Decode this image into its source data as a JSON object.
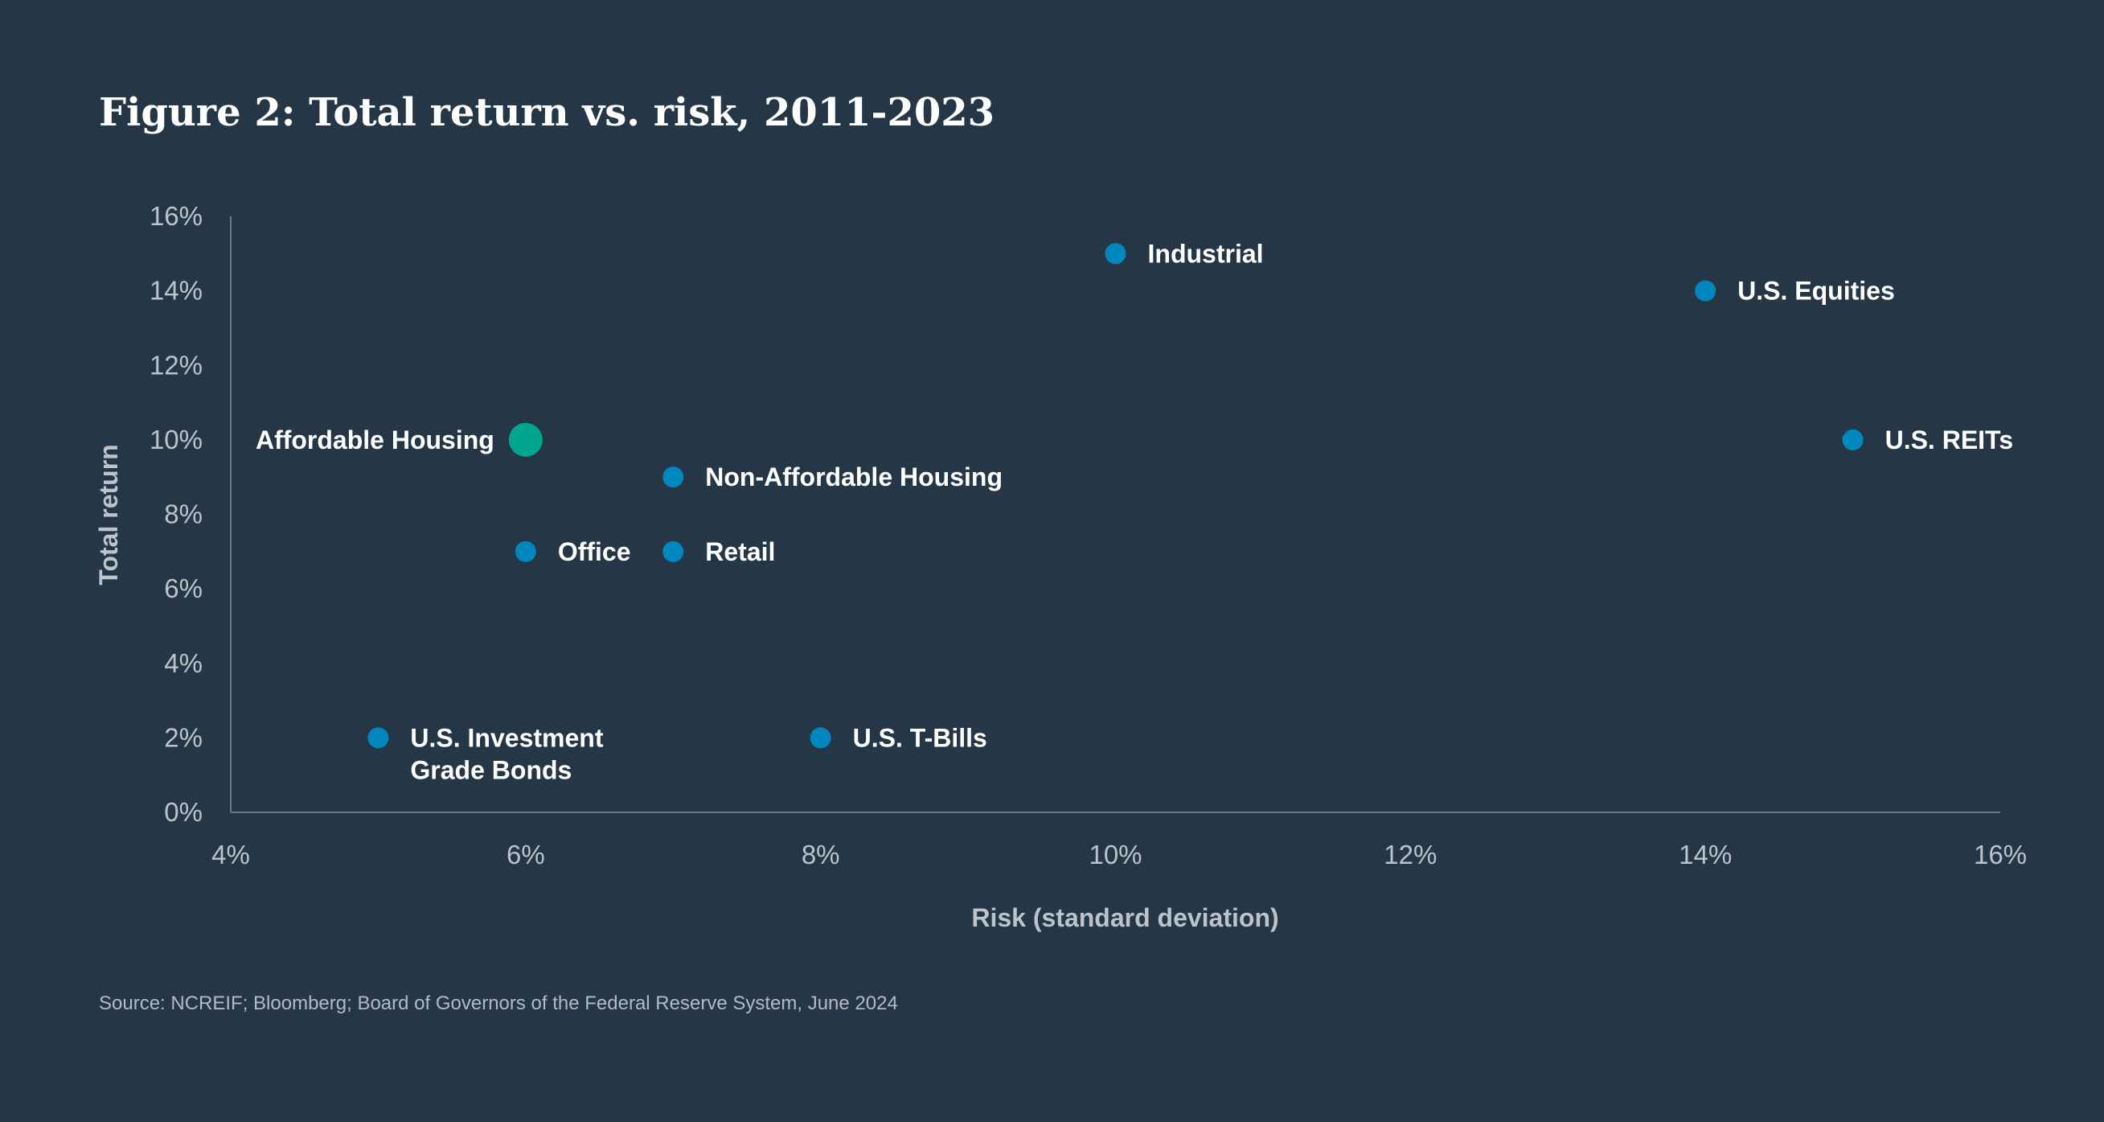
{
  "title": "Figure 2: Total return vs. risk, 2011-2023",
  "source": "Source: NCREIF; Bloomberg; Board of Governors of the Federal Reserve System, June 2024",
  "colors": {
    "background": "#253746",
    "point": "#0087bd",
    "highlight": "#00a68f",
    "axis": "#6b7886",
    "tick_text": "#bcc3ca",
    "label_text": "#ffffff"
  },
  "chart_data": {
    "type": "scatter",
    "title": "Figure 2: Total return vs. risk, 2011-2023",
    "xlabel": "Risk (standard deviation)",
    "ylabel": "Total return",
    "xlim": [
      4,
      16
    ],
    "ylim": [
      0,
      16
    ],
    "x_unit": "%",
    "y_unit": "%",
    "x_ticks": [
      "4%",
      "6%",
      "8%",
      "10%",
      "12%",
      "14%",
      "16%"
    ],
    "y_ticks": [
      "0%",
      "2%",
      "4%",
      "6%",
      "8%",
      "10%",
      "12%",
      "14%",
      "16%"
    ],
    "grid": false,
    "legend": "none",
    "points": [
      {
        "label": "Industrial",
        "x": 10,
        "y": 15,
        "highlight": false
      },
      {
        "label": "U.S. Equities",
        "x": 14,
        "y": 14,
        "highlight": false
      },
      {
        "label": "U.S. REITs",
        "x": 15,
        "y": 10,
        "highlight": false
      },
      {
        "label": "Affordable Housing",
        "x": 6,
        "y": 10,
        "highlight": true
      },
      {
        "label": "Non-Affordable Housing",
        "x": 7,
        "y": 9,
        "highlight": false
      },
      {
        "label": "Office",
        "x": 6,
        "y": 7,
        "highlight": false
      },
      {
        "label": "Retail",
        "x": 7,
        "y": 7,
        "highlight": false
      },
      {
        "label": "U.S. Investment Grade Bonds",
        "label_lines": [
          "U.S. Investment",
          "Grade Bonds"
        ],
        "x": 5,
        "y": 2,
        "highlight": false
      },
      {
        "label": "U.S. T-Bills",
        "x": 8,
        "y": 2,
        "highlight": false
      }
    ]
  }
}
